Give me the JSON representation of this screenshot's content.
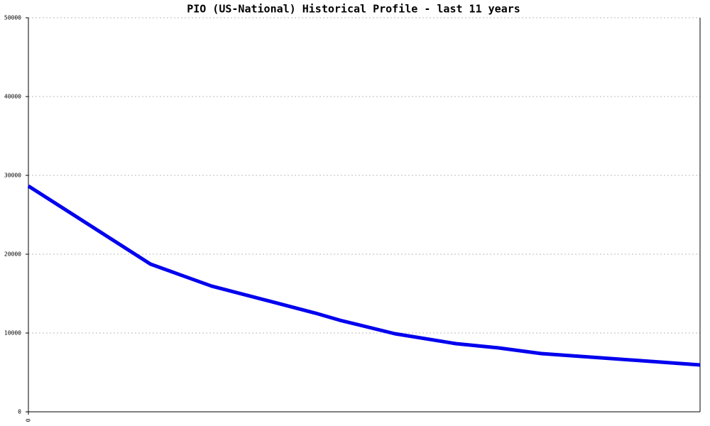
{
  "chart_data": {
    "type": "line",
    "title": "PIO (US-National) Historical Profile - last 11 years",
    "x": [
      0,
      2,
      3,
      3.9,
      4.7,
      5.1,
      6,
      7,
      7.7,
      8.4,
      11
    ],
    "series": [
      {
        "name": "PIO",
        "color": "#0000ee",
        "values": [
          28650,
          18740,
          15950,
          14140,
          12520,
          11620,
          9910,
          8650,
          8110,
          7390,
          5950
        ]
      }
    ],
    "xlim": [
      0,
      11
    ],
    "xticks": [
      0
    ],
    "ylim": [
      0,
      50000
    ],
    "yticks": [
      0,
      10000,
      20000,
      30000,
      40000,
      50000
    ],
    "grid": true
  }
}
